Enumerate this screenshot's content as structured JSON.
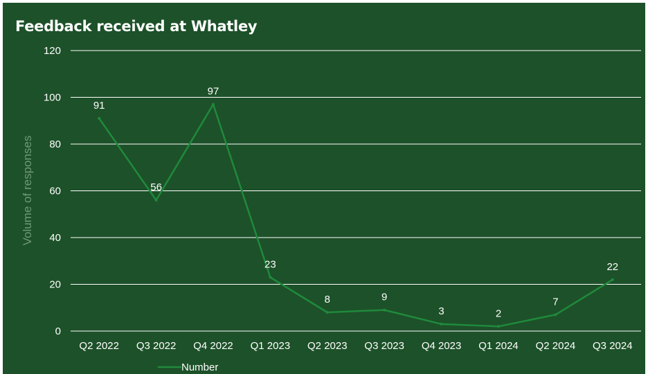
{
  "chart_data": {
    "type": "line",
    "title": "Feedback received at Whatley",
    "xlabel": "",
    "ylabel": "Volume of responses",
    "categories": [
      "Q2 2022",
      "Q3 2022",
      "Q4 2022",
      "Q1 2023",
      "Q2 2023",
      "Q3 2023",
      "Q4 2023",
      "Q1 2024",
      "Q2 2024",
      "Q3 2024"
    ],
    "series": [
      {
        "name": "Number",
        "values": [
          91,
          56,
          97,
          23,
          8,
          9,
          3,
          2,
          7,
          22
        ]
      }
    ],
    "ylim": [
      0,
      120
    ],
    "yticks": [
      0,
      20,
      40,
      60,
      80,
      100,
      120
    ],
    "grid": "horizontal",
    "legend": "bottom-left",
    "colors": {
      "background": "#1d5129",
      "line": "#1f8a3c",
      "grid": "#ffffff",
      "text": "#ffffff",
      "axis_title": "#6f9a76"
    }
  }
}
